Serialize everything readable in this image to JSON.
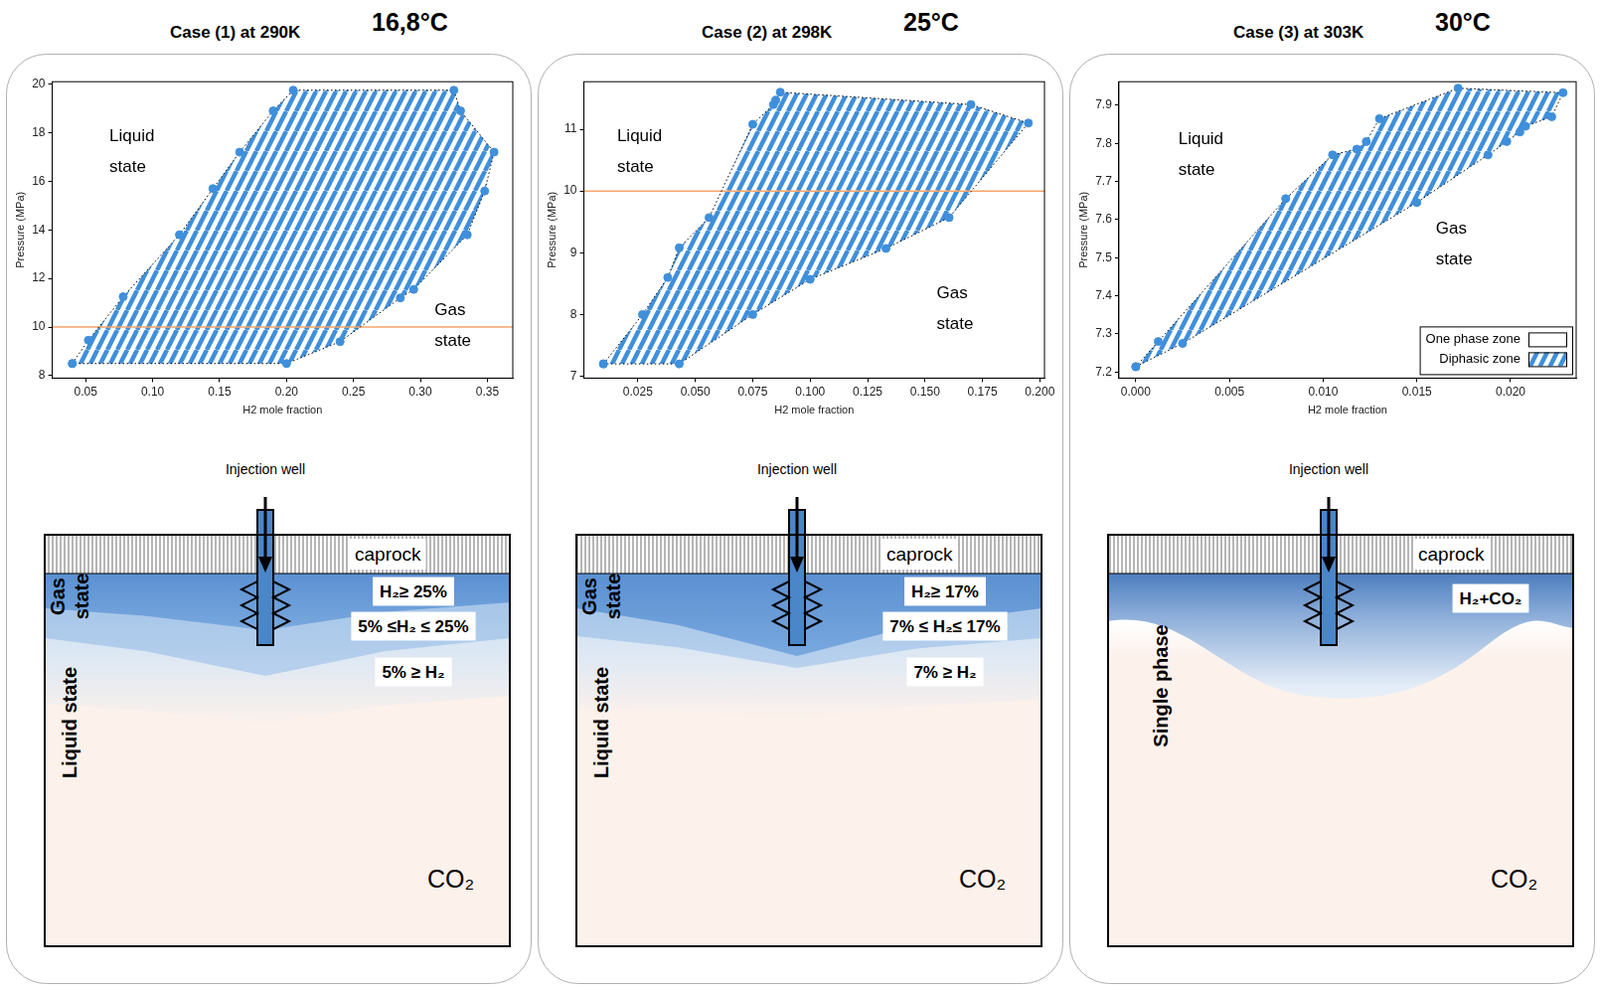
{
  "chart_data": [
    {
      "type": "scatter",
      "x_label": "H2 mole fraction",
      "y_label": "Pressure (MPa)",
      "xlim": [
        0.025,
        0.369
      ],
      "ylim": [
        7.9,
        20.1
      ],
      "xticks": [
        0.05,
        {
          "value": 0.1,
          "label": "0.10"
        },
        0.15,
        {
          "value": 0.2,
          "label": "0.20"
        },
        0.25,
        {
          "value": 0.3,
          "label": "0.30"
        },
        0.35
      ],
      "yticks": [
        8,
        10,
        12,
        14,
        16,
        18,
        20
      ],
      "grid": false,
      "reference_lines": [
        {
          "y": 10,
          "color": "#f5a46a"
        }
      ],
      "annotations": [
        {
          "text": "Liquid state"
        },
        {
          "text": "Gas state"
        }
      ],
      "series": [
        {
          "color": "#3f8fdb",
          "marker": "circle",
          "line_style": "dotted",
          "x": [
            0.04,
            0.052,
            0.078,
            0.12,
            0.145,
            0.165,
            0.19,
            0.205,
            0.325,
            0.33,
            0.355,
            0.348,
            0.335,
            0.295,
            0.285,
            0.24,
            0.2
          ],
          "values": [
            8.5,
            9.46,
            11.25,
            13.8,
            15.7,
            17.2,
            18.9,
            19.75,
            19.75,
            18.9,
            17.2,
            15.6,
            13.8,
            11.55,
            11.2,
            9.4,
            8.5
          ]
        }
      ]
    },
    {
      "type": "scatter",
      "x_label": "H2 mole fraction",
      "y_label": "Pressure (MPa)",
      "xlim": [
        0.0015,
        0.202
      ],
      "ylim": [
        6.97,
        11.77
      ],
      "xticks": [
        0.025,
        {
          "value": 0.05,
          "label": "0.050"
        },
        0.075,
        {
          "value": 0.1,
          "label": "0.100"
        },
        0.125,
        {
          "value": 0.15,
          "label": "0.150"
        },
        0.175,
        {
          "value": 0.2,
          "label": "0.200"
        }
      ],
      "yticks": [
        7,
        8,
        9,
        10,
        11
      ],
      "grid": false,
      "reference_lines": [
        {
          "y": 10,
          "color": "#f5a46a"
        }
      ],
      "annotations": [
        {
          "text": "Liquid state"
        },
        {
          "text": "Gas state"
        }
      ],
      "series": [
        {
          "color": "#3f8fdb",
          "marker": "circle",
          "line_style": "dotted",
          "x": [
            0.01,
            0.027,
            0.038,
            0.043,
            0.056,
            0.075,
            0.084,
            0.085,
            0.087,
            0.17,
            0.195,
            0.1605,
            0.133,
            0.1,
            0.075,
            0.043
          ],
          "values": [
            7.2,
            8.0,
            8.6,
            9.08,
            9.57,
            11.08,
            11.4,
            11.47,
            11.6,
            11.4,
            11.1,
            9.57,
            9.07,
            8.57,
            8.0,
            7.2
          ]
        }
      ]
    },
    {
      "type": "scatter",
      "x_label": "H2 mole fraction",
      "y_label": "Pressure (MPa)",
      "xlim": [
        -0.0009,
        0.0235
      ],
      "ylim": [
        7.184,
        7.962
      ],
      "xticks": [
        {
          "value": 0,
          "label": "0.000"
        },
        0.005,
        {
          "value": 0.01,
          "label": "0.010"
        },
        0.015,
        {
          "value": 0.02,
          "label": "0.020"
        }
      ],
      "yticks": [
        7.2,
        7.3,
        7.4,
        7.5,
        7.6,
        7.7,
        7.8,
        7.9
      ],
      "grid": false,
      "legend": "lower right",
      "annotations": [
        {
          "text": "Liquid state"
        },
        {
          "text": "Gas state"
        }
      ],
      "series": [
        {
          "name": "One phase zone",
          "color": "#ffffff",
          "x": [],
          "values": []
        },
        {
          "name": "Diphasic zone",
          "color": "#3f8fdb",
          "marker": "circle",
          "line_style": "dotted",
          "x": [
            0,
            0.0012,
            0.008,
            0.0105,
            0.0118,
            0.0123,
            0.013,
            0.0172,
            0.0228,
            0.0222,
            0.0208,
            0.0205,
            0.0198,
            0.0188,
            0.015,
            0.0025
          ],
          "values": [
            7.214,
            7.28,
            7.655,
            7.77,
            7.785,
            7.805,
            7.865,
            7.945,
            7.933,
            7.87,
            7.845,
            7.83,
            7.805,
            7.77,
            7.645,
            7.275
          ]
        }
      ]
    }
  ],
  "panels": [
    {
      "title": "Case (1) at 290K",
      "temperature": "16,8°C",
      "schematic": {
        "well_label": "Injection well",
        "caprock": "caprock",
        "zone_labels": [
          "H₂≥ 25%",
          "5% ≤H₂ ≤ 25%",
          "5% ≥ H₂"
        ],
        "state_labels": [
          "Gas state",
          "Liquid state"
        ],
        "fluid": "CO₂"
      }
    },
    {
      "title": "Case (2) at 298K",
      "temperature": "25°C",
      "schematic": {
        "well_label": "Injection well",
        "caprock": "caprock",
        "zone_labels": [
          "H₂≥ 17%",
          "7% ≤ H₂≤ 17%",
          "7% ≥ H₂"
        ],
        "state_labels": [
          "Gas state",
          "Liquid state"
        ],
        "fluid": "CO₂"
      }
    },
    {
      "title": "Case (3) at 303K",
      "temperature": "30°C",
      "schematic": {
        "well_label": "Injection well",
        "caprock": "caprock",
        "zone_labels": [
          "H₂+CO₂"
        ],
        "state_labels": [
          "Single phase"
        ],
        "fluid": "CO₂"
      }
    }
  ]
}
